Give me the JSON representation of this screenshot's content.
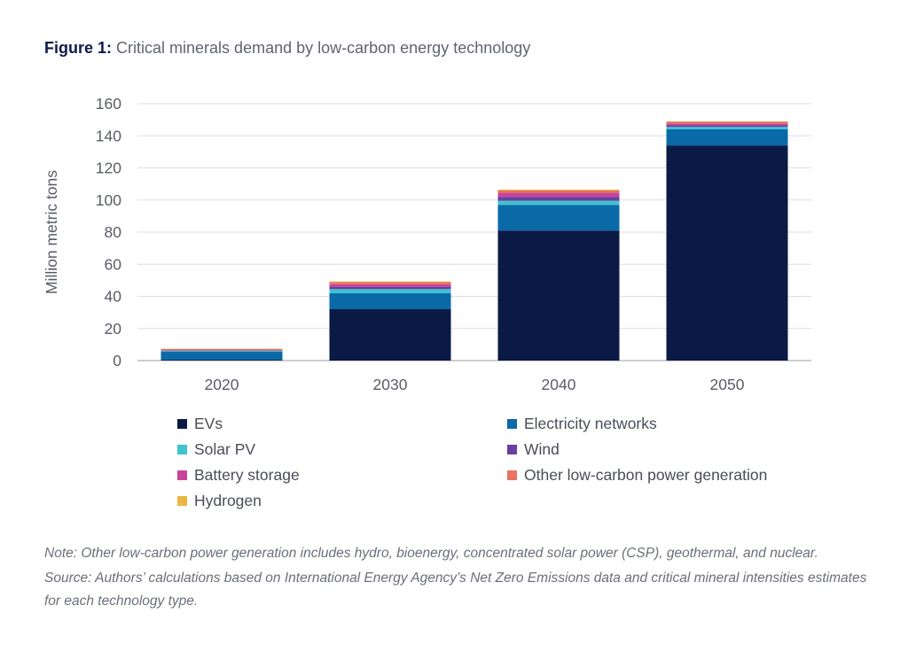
{
  "figure": {
    "label": "Figure 1:",
    "caption": "Critical minerals demand by low-carbon energy technology"
  },
  "chart_data": {
    "type": "bar",
    "stacked": true,
    "categories": [
      "2020",
      "2030",
      "2040",
      "2050"
    ],
    "ylabel": "Million metric tons",
    "xlabel": "",
    "ylim": [
      0,
      160
    ],
    "yticks": [
      0,
      20,
      40,
      60,
      80,
      100,
      120,
      140,
      160
    ],
    "grid": true,
    "legend_position": "bottom",
    "series": [
      {
        "name": "EVs",
        "color": "#0b1a45",
        "values": [
          0.5,
          32,
          81,
          134
        ]
      },
      {
        "name": "Electricity networks",
        "color": "#0a6aa8",
        "values": [
          5,
          10,
          16,
          10
        ]
      },
      {
        "name": "Solar PV",
        "color": "#3ec3cf",
        "values": [
          0.5,
          2.5,
          2.5,
          1.5
        ]
      },
      {
        "name": "Wind",
        "color": "#6a3fa0",
        "values": [
          0.3,
          1.5,
          2.5,
          1.2
        ]
      },
      {
        "name": "Battery storage",
        "color": "#c8449c",
        "values": [
          0.2,
          1.5,
          2.5,
          1
        ]
      },
      {
        "name": "Other low-carbon power generation",
        "color": "#e8735e",
        "values": [
          0.8,
          1.5,
          1.5,
          1
        ]
      },
      {
        "name": "Hydrogen",
        "color": "#e8b840",
        "values": [
          0.1,
          0.3,
          0.5,
          0.3
        ]
      }
    ]
  },
  "notes": {
    "note": "Note: Other low-carbon power generation includes hydro, bioenergy, concentrated solar power (CSP), geothermal, and nuclear.",
    "source": "Source: Authors’ calculations based on International Energy Agency’s Net Zero Emissions data and critical mineral intensities estimates for each technology type."
  }
}
